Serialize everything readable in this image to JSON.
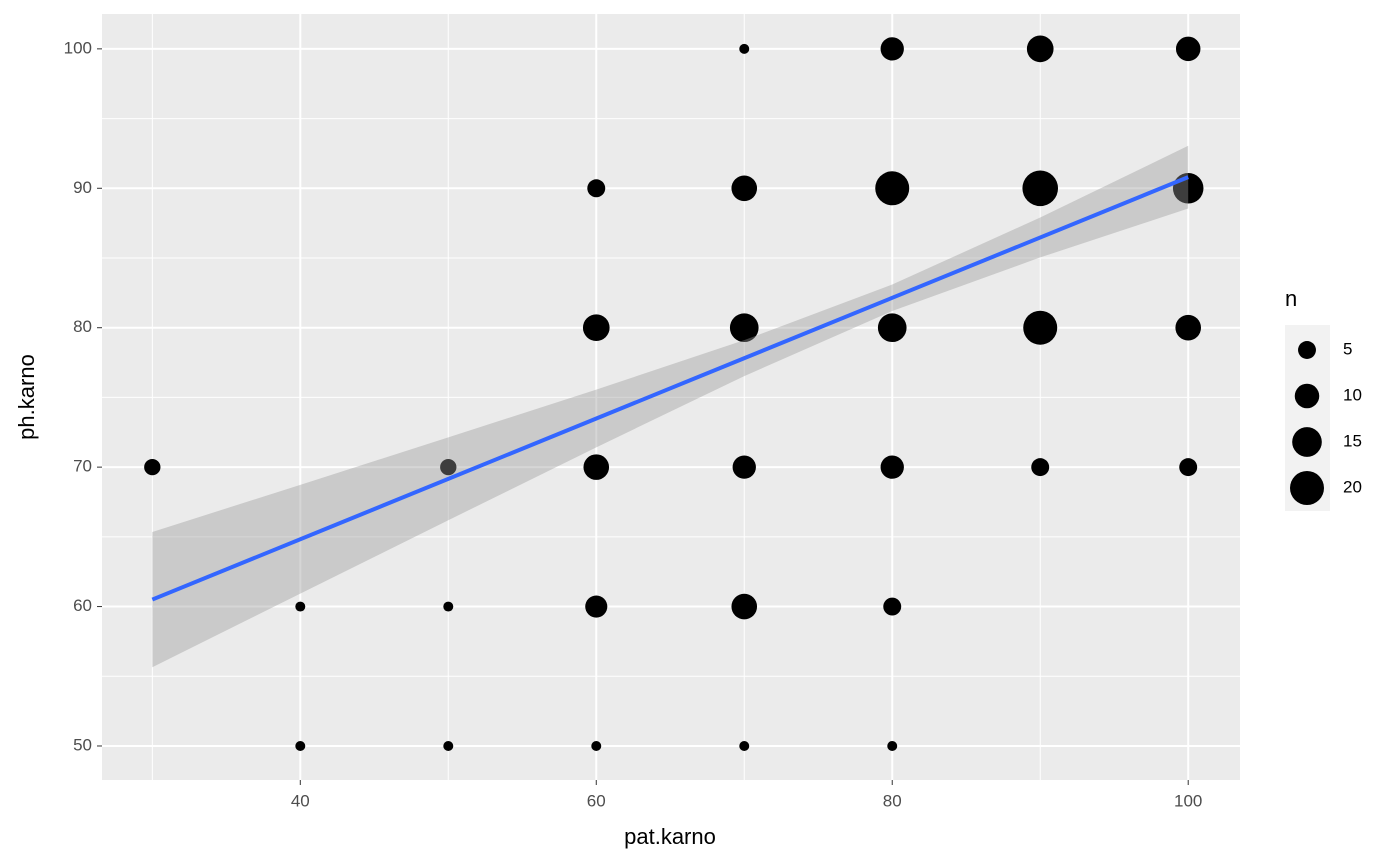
{
  "chart_data": {
    "type": "scatter",
    "x_label": "pat.karno",
    "y_label": "ph.karno",
    "x": [
      30,
      40,
      40,
      50,
      50,
      50,
      60,
      60,
      60,
      60,
      60,
      70,
      70,
      70,
      70,
      70,
      70,
      80,
      80,
      80,
      80,
      80,
      80,
      90,
      90,
      90,
      90,
      100,
      100,
      100,
      100
    ],
    "y": [
      70,
      60,
      50,
      70,
      60,
      50,
      90,
      80,
      70,
      60,
      50,
      100,
      90,
      80,
      70,
      60,
      50,
      100,
      90,
      80,
      70,
      60,
      50,
      100,
      90,
      80,
      70,
      100,
      90,
      80,
      70
    ],
    "sizes": [
      4,
      1,
      1,
      4,
      1,
      1,
      5,
      12,
      11,
      8,
      1,
      1,
      11,
      14,
      9,
      11,
      1,
      9,
      20,
      14,
      9,
      5,
      1,
      12,
      22,
      20,
      5,
      10,
      16,
      11,
      5
    ],
    "color": "#000000",
    "fit": {
      "x": [
        30,
        100
      ],
      "y": [
        60.5,
        90.8
      ],
      "color": "#3366ff"
    },
    "band": {
      "x": [
        30,
        40,
        50,
        60,
        70,
        80,
        90,
        100
      ],
      "lower": [
        55.65,
        60.93,
        66.19,
        71.42,
        76.53,
        81.2,
        85.04,
        88.55
      ],
      "upper": [
        65.35,
        68.73,
        72.13,
        75.56,
        79.11,
        83.1,
        87.9,
        93.05
      ],
      "color": "#999999"
    },
    "xlim": [
      26.6,
      103.5
    ],
    "ylim": [
      47.56,
      102.5
    ],
    "xticks": [
      40,
      60,
      80,
      100
    ],
    "yticks": [
      50,
      60,
      70,
      80,
      90,
      100
    ],
    "x_minor_ticks": [
      30,
      50,
      70,
      90
    ],
    "y_minor_ticks": [
      55,
      65,
      75,
      85,
      95
    ],
    "grid": true,
    "size_legend": {
      "title": "n",
      "values": [
        5,
        10,
        15,
        20
      ]
    }
  }
}
